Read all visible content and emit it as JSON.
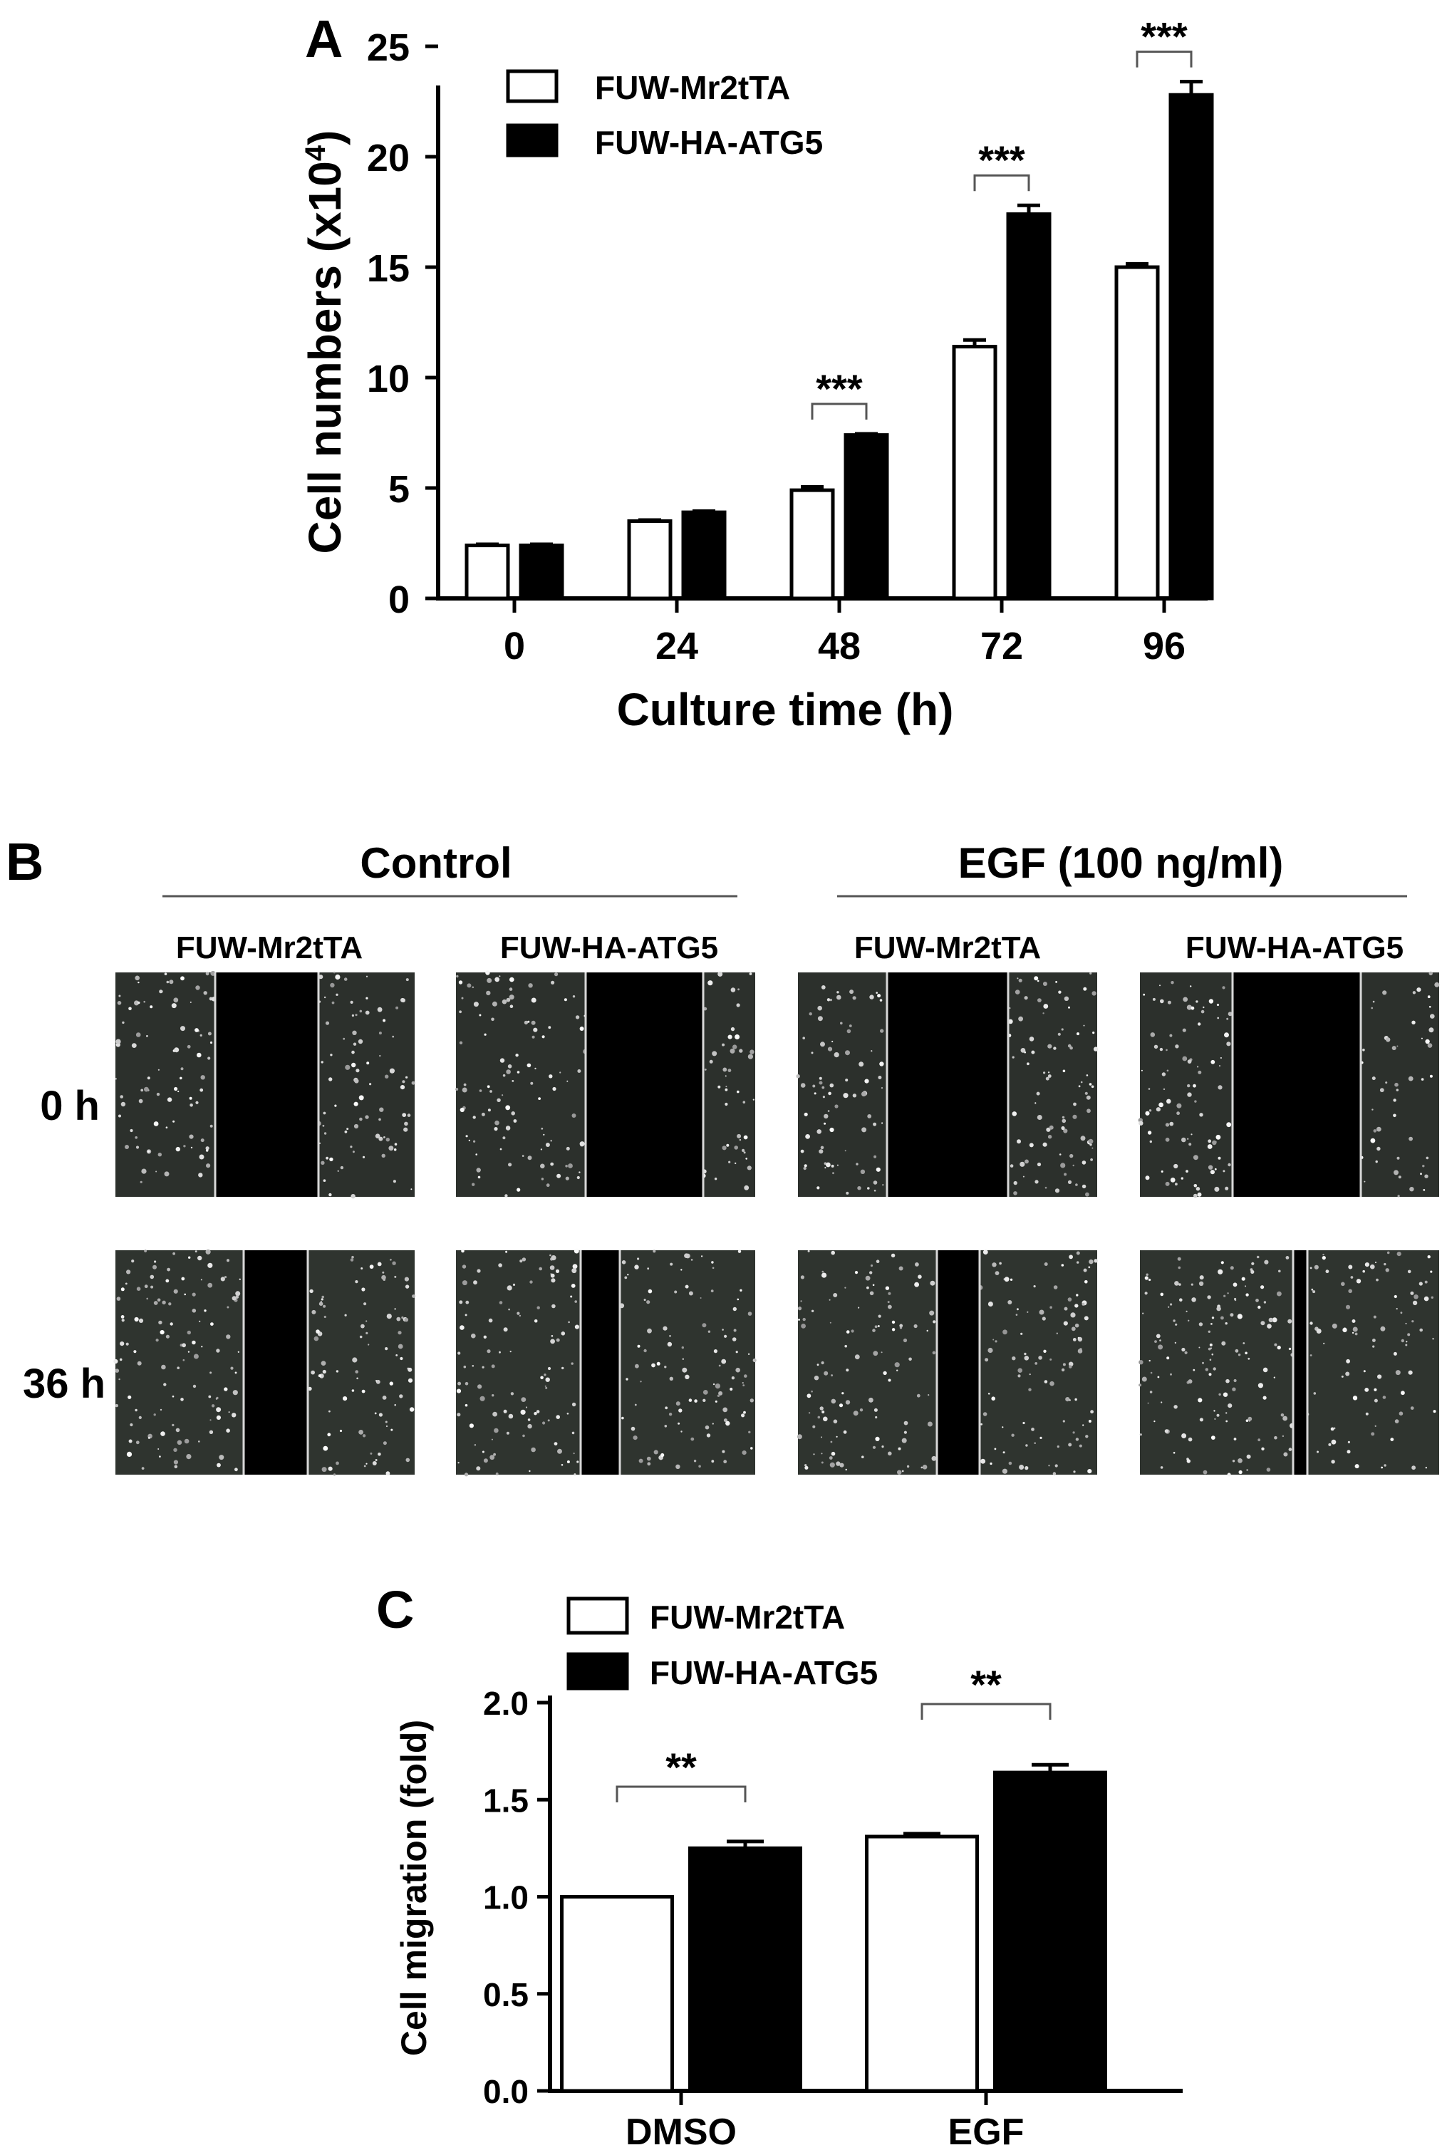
{
  "panel_a": {
    "label": "A",
    "chart_data": {
      "type": "bar",
      "categories": [
        "0",
        "24",
        "48",
        "72",
        "96"
      ],
      "series": [
        {
          "name": "FUW-Mr2tTA",
          "values": [
            2.4,
            3.5,
            4.9,
            11.4,
            15.0
          ],
          "errors": [
            0.05,
            0.05,
            0.15,
            0.3,
            0.15
          ],
          "color": "#ffffff"
        },
        {
          "name": "FUW-HA-ATG5",
          "values": [
            2.4,
            3.9,
            7.4,
            17.4,
            22.8
          ],
          "errors": [
            0.05,
            0.05,
            0.05,
            0.4,
            0.6
          ],
          "color": "#000000"
        }
      ],
      "xlabel": "Culture time (h)",
      "ylabel_main": "Cell numbers (x10",
      "ylabel_sup": "4",
      "ylabel_close": ")",
      "ylim": [
        0,
        25
      ],
      "yticks": [
        "0",
        "5",
        "10",
        "15",
        "20",
        "25"
      ],
      "legend_placement": "top-left",
      "significance": [
        "",
        "",
        "***",
        "***",
        "***"
      ]
    }
  },
  "panel_b": {
    "label": "B",
    "groups": [
      {
        "title": "Control",
        "columns": [
          "FUW-Mr2tTA",
          "FUW-HA-ATG5"
        ]
      },
      {
        "title": "EGF (100 ng/ml)",
        "columns": [
          "FUW-Mr2tTA",
          "FUW-HA-ATG5"
        ]
      }
    ],
    "rows": [
      "0 h",
      "36 h"
    ]
  },
  "panel_c": {
    "label": "C",
    "chart_data": {
      "type": "bar",
      "categories": [
        "DMSO",
        "EGF"
      ],
      "series": [
        {
          "name": "FUW-Mr2tTA",
          "values": [
            1.0,
            1.31
          ],
          "errors": [
            0.0,
            0.015
          ],
          "color": "#ffffff"
        },
        {
          "name": "FUW-HA-ATG5",
          "values": [
            1.25,
            1.64
          ],
          "errors": [
            0.035,
            0.04
          ],
          "color": "#000000"
        }
      ],
      "ylabel": "Cell migration (fold)",
      "ylim": [
        0,
        2.0
      ],
      "yticks": [
        "0.0",
        "0.5",
        "1.0",
        "1.5",
        "2.0"
      ],
      "legend_placement": "top-left",
      "significance": [
        "**",
        "**"
      ]
    }
  }
}
